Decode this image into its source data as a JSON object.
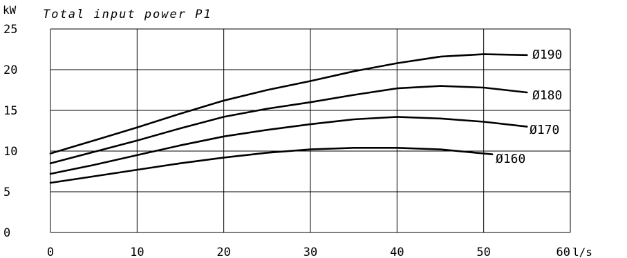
{
  "chart_data": {
    "type": "line",
    "title": "Total input power P1",
    "ylabel": "kW",
    "xlabel": "l/s",
    "xlim": [
      0,
      60
    ],
    "ylim": [
      0,
      25
    ],
    "x_ticks": [
      "0",
      "10",
      "20",
      "30",
      "40",
      "50",
      "60"
    ],
    "y_ticks": [
      "0",
      "5",
      "10",
      "15",
      "20",
      "25"
    ],
    "grid": true,
    "series": [
      {
        "name": "Ø190",
        "x": [
          0,
          5,
          10,
          15,
          20,
          25,
          30,
          35,
          40,
          45,
          50,
          55
        ],
        "y": [
          9.7,
          11.3,
          12.9,
          14.6,
          16.2,
          17.5,
          18.6,
          19.8,
          20.8,
          21.6,
          21.9,
          21.8
        ]
      },
      {
        "name": "Ø180",
        "x": [
          0,
          5,
          10,
          15,
          20,
          25,
          30,
          35,
          40,
          45,
          50,
          55
        ],
        "y": [
          8.5,
          9.9,
          11.3,
          12.8,
          14.2,
          15.2,
          16.0,
          16.9,
          17.7,
          18.0,
          17.8,
          17.2
        ]
      },
      {
        "name": "Ø170",
        "x": [
          0,
          5,
          10,
          15,
          20,
          25,
          30,
          35,
          40,
          45,
          50,
          55
        ],
        "y": [
          7.2,
          8.3,
          9.5,
          10.7,
          11.8,
          12.6,
          13.3,
          13.9,
          14.2,
          14.0,
          13.6,
          13.0
        ]
      },
      {
        "name": "Ø160",
        "x": [
          0,
          5,
          10,
          15,
          20,
          25,
          30,
          35,
          40,
          45,
          51
        ],
        "y": [
          6.1,
          6.9,
          7.7,
          8.5,
          9.2,
          9.8,
          10.2,
          10.4,
          10.4,
          10.2,
          9.6
        ]
      }
    ]
  }
}
